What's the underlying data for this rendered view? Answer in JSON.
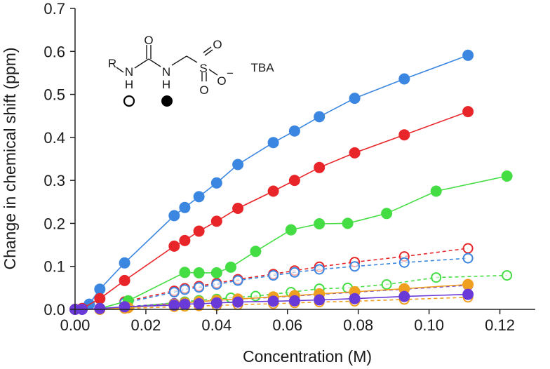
{
  "chart_data": {
    "type": "scatter",
    "title": "",
    "xlabel": "Concentration (M)",
    "ylabel": "Change in chemical shift (ppm)",
    "xlim": [
      0,
      0.13
    ],
    "ylim": [
      0,
      0.7
    ],
    "xticks": [
      0,
      0.02,
      0.04,
      0.06,
      0.08,
      0.1,
      0.12
    ],
    "yticks": [
      0,
      0.1,
      0.2,
      0.3,
      0.4,
      0.5,
      0.6,
      0.7
    ],
    "xtick_labels": [
      "0.00",
      "0.02",
      "0.04",
      "0.06",
      "0.08",
      "0.10",
      "0.12"
    ],
    "ytick_labels": [
      "0.0",
      "0.1",
      "0.2",
      "0.3",
      "0.4",
      "0.5",
      "0.6",
      "0.7"
    ],
    "grid": false,
    "series": [
      {
        "name": "blue-filled",
        "color": "#3b86e0",
        "marker": "filled",
        "line": "solid",
        "x": [
          0,
          0.002,
          0.004,
          0.007,
          0.014,
          0.028,
          0.031,
          0.035,
          0.04,
          0.046,
          0.056,
          0.062,
          0.069,
          0.079,
          0.093,
          0.111
        ],
        "y": [
          0,
          0.002,
          0.012,
          0.047,
          0.108,
          0.218,
          0.237,
          0.262,
          0.294,
          0.337,
          0.388,
          0.415,
          0.448,
          0.491,
          0.536,
          0.591
        ]
      },
      {
        "name": "red-filled",
        "color": "#e8262a",
        "marker": "filled",
        "line": "solid",
        "x": [
          0,
          0.002,
          0.007,
          0.014,
          0.028,
          0.031,
          0.035,
          0.04,
          0.046,
          0.056,
          0.062,
          0.069,
          0.079,
          0.093,
          0.111
        ],
        "y": [
          0,
          0.002,
          0.025,
          0.067,
          0.147,
          0.16,
          0.182,
          0.205,
          0.235,
          0.275,
          0.3,
          0.33,
          0.364,
          0.406,
          0.46
        ]
      },
      {
        "name": "green-filled",
        "color": "#44dd44",
        "marker": "filled",
        "line": "solid",
        "x": [
          0.007,
          0.015,
          0.031,
          0.035,
          0.04,
          0.044,
          0.051,
          0.061,
          0.069,
          0.077,
          0.088,
          0.102,
          0.122
        ],
        "y": [
          0.002,
          0.02,
          0.086,
          0.085,
          0.085,
          0.098,
          0.135,
          0.185,
          0.199,
          0.2,
          0.223,
          0.275,
          0.31
        ]
      },
      {
        "name": "orange-filled",
        "color": "#f0a020",
        "marker": "filled",
        "line": "solid",
        "x": [
          0.007,
          0.015,
          0.028,
          0.031,
          0.035,
          0.04,
          0.046,
          0.056,
          0.062,
          0.069,
          0.079,
          0.093,
          0.111
        ],
        "y": [
          0,
          0.004,
          0.012,
          0.015,
          0.018,
          0.021,
          0.024,
          0.029,
          0.032,
          0.036,
          0.041,
          0.048,
          0.058
        ]
      },
      {
        "name": "violet-filled",
        "color": "#6a3ad8",
        "marker": "filled",
        "line": "solid",
        "x": [
          0,
          0.002,
          0.007,
          0.014,
          0.028,
          0.031,
          0.035,
          0.04,
          0.046,
          0.056,
          0.062,
          0.069,
          0.079,
          0.093,
          0.111
        ],
        "y": [
          0,
          0,
          0.002,
          0.006,
          0.01,
          0.012,
          0.013,
          0.015,
          0.017,
          0.019,
          0.02,
          0.022,
          0.025,
          0.03,
          0.035
        ]
      },
      {
        "name": "red-open",
        "color": "#e8262a",
        "marker": "open",
        "line": "dashed",
        "x": [
          0.014,
          0.028,
          0.031,
          0.035,
          0.04,
          0.046,
          0.056,
          0.062,
          0.069,
          0.079,
          0.093,
          0.111
        ],
        "y": [
          0.018,
          0.043,
          0.049,
          0.054,
          0.061,
          0.07,
          0.082,
          0.09,
          0.099,
          0.11,
          0.123,
          0.142
        ]
      },
      {
        "name": "blue-open",
        "color": "#3b86e0",
        "marker": "open",
        "line": "dashed",
        "x": [
          0.014,
          0.028,
          0.031,
          0.035,
          0.04,
          0.046,
          0.056,
          0.062,
          0.069,
          0.079,
          0.093,
          0.111
        ],
        "y": [
          0.015,
          0.04,
          0.046,
          0.051,
          0.058,
          0.067,
          0.079,
          0.086,
          0.093,
          0.1,
          0.109,
          0.119
        ]
      },
      {
        "name": "green-open",
        "color": "#44dd44",
        "marker": "open",
        "line": "dashed",
        "x": [
          0.015,
          0.031,
          0.035,
          0.04,
          0.044,
          0.051,
          0.061,
          0.069,
          0.077,
          0.088,
          0.102,
          0.122
        ],
        "y": [
          0.005,
          0.018,
          0.021,
          0.024,
          0.027,
          0.031,
          0.04,
          0.048,
          0.05,
          0.058,
          0.074,
          0.079
        ]
      },
      {
        "name": "violet-open",
        "color": "#6a3ad8",
        "marker": "open",
        "line": "dashed",
        "x": [
          0.014,
          0.028,
          0.031,
          0.035,
          0.04,
          0.046,
          0.056,
          0.062,
          0.069,
          0.079,
          0.093,
          0.111
        ],
        "y": [
          0.006,
          0.014,
          0.016,
          0.018,
          0.021,
          0.024,
          0.028,
          0.031,
          0.035,
          0.04,
          0.047,
          0.056
        ]
      },
      {
        "name": "orange-open",
        "color": "#f0a020",
        "marker": "open",
        "line": "dashed",
        "x": [
          0.014,
          0.028,
          0.031,
          0.035,
          0.04,
          0.046,
          0.056,
          0.062,
          0.069,
          0.079,
          0.093,
          0.111
        ],
        "y": [
          0.002,
          0.006,
          0.007,
          0.008,
          0.009,
          0.011,
          0.013,
          0.015,
          0.017,
          0.019,
          0.023,
          0.028
        ]
      }
    ]
  },
  "structure": {
    "atoms": {
      "r": "R",
      "n1": "N",
      "h1": "H",
      "o_carbonyl": "O",
      "n2": "N",
      "h2": "H",
      "s": "S",
      "o_top": "O",
      "o_bottom": "O",
      "o_minus": "O",
      "minus": "−",
      "counterion": "TBA"
    },
    "open_marker_color": "#000000",
    "filled_marker_color": "#000000"
  }
}
